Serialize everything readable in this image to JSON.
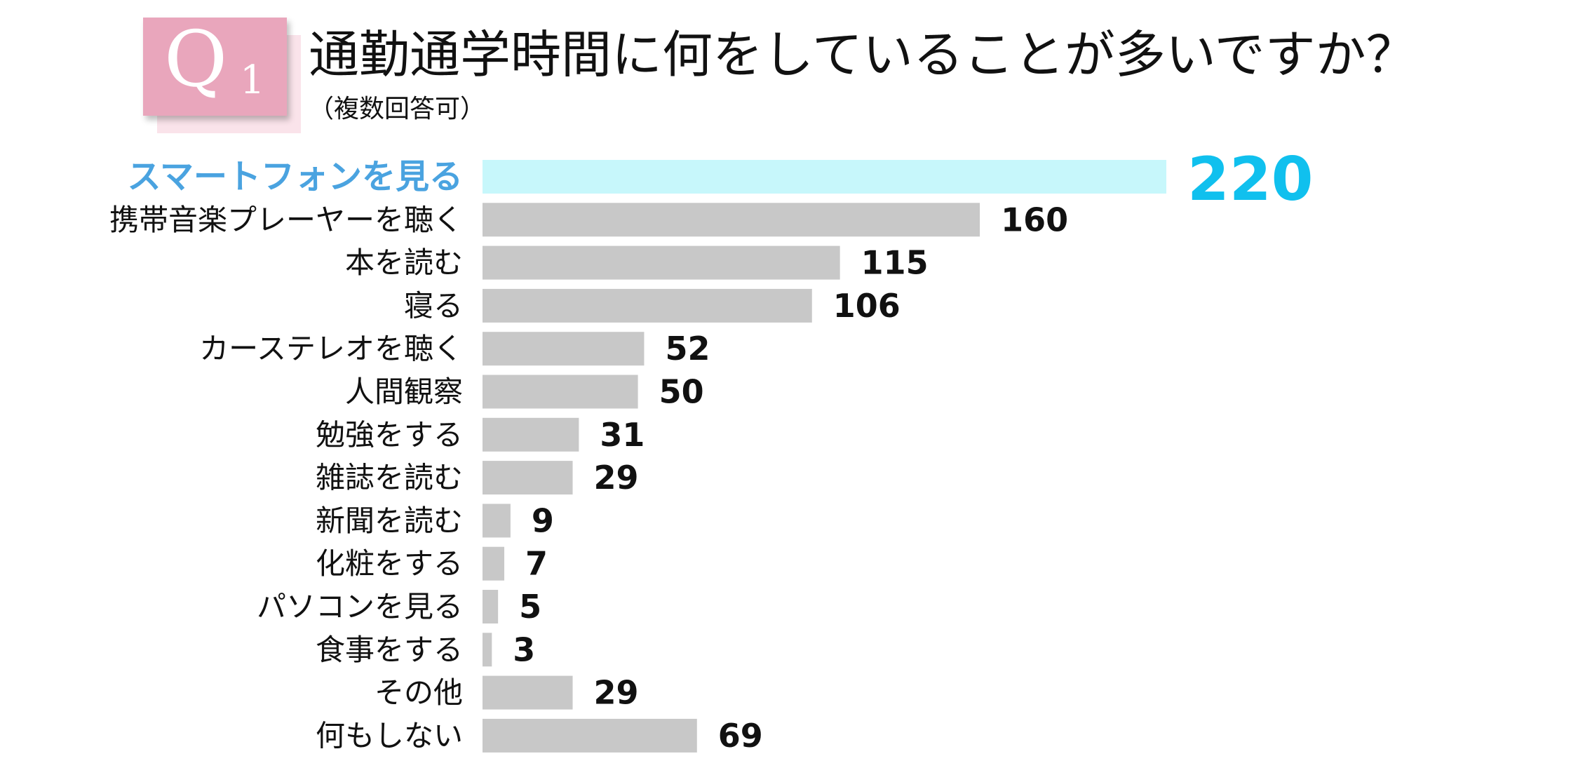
{
  "badge": {
    "letter": "Q",
    "number": "1"
  },
  "title": "通勤通学時間に何をしていることが多いですか？",
  "subtitle": "（複数回答可）",
  "colors": {
    "bar": "#c8c8c8",
    "highlight_bar": "#c7f7fb",
    "highlight_label": "#4aa3e0",
    "highlight_value": "#10c0ee",
    "badge": "#e9a6bc"
  },
  "chart_data": {
    "type": "bar",
    "orientation": "horizontal",
    "categories": [
      "スマートフォンを見る",
      "携帯音楽プレーヤーを聴く",
      "本を読む",
      "寝る",
      "カーステレオを聴く",
      "人間観察",
      "勉強をする",
      "雑誌を読む",
      "新聞を読む",
      "化粧をする",
      "パソコンを見る",
      "食事をする",
      "その他",
      "何もしない"
    ],
    "values": [
      220,
      160,
      115,
      106,
      52,
      50,
      31,
      29,
      9,
      7,
      5,
      3,
      29,
      69
    ],
    "highlight_index": 0,
    "xlim": [
      0,
      220
    ],
    "grid": false
  }
}
